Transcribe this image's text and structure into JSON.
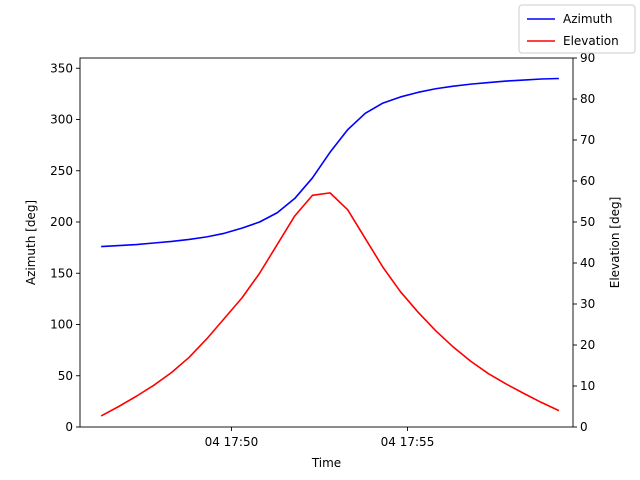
{
  "chart_data": {
    "type": "line",
    "xlabel": "Time",
    "ylabel_left": "Azimuth [deg]",
    "ylabel_right": "Elevation [deg]",
    "x_ticks": [
      {
        "minute": 50,
        "label": "04 17:50"
      },
      {
        "minute": 55,
        "label": "04 17:55"
      }
    ],
    "xlim_minutes": [
      45.7,
      59.7
    ],
    "ylim_left": [
      0,
      360
    ],
    "yticks_left": [
      0,
      50,
      100,
      150,
      200,
      250,
      300,
      350
    ],
    "ylim_right": [
      0,
      90
    ],
    "yticks_right": [
      0,
      10,
      20,
      30,
      40,
      50,
      60,
      70,
      80,
      90
    ],
    "grid": false,
    "legend": {
      "placement": "top-right",
      "entries": [
        "Azimuth",
        "Elevation"
      ]
    },
    "x_minutes": [
      46.3,
      46.8,
      47.3,
      47.8,
      48.3,
      48.8,
      49.3,
      49.8,
      50.3,
      50.8,
      51.3,
      51.8,
      52.3,
      52.8,
      53.3,
      53.8,
      54.3,
      54.8,
      55.3,
      55.8,
      56.3,
      56.8,
      57.3,
      57.8,
      58.3,
      58.8,
      59.3
    ],
    "series": [
      {
        "name": "Azimuth",
        "axis": "left",
        "color": "#0000ff",
        "values": [
          176,
          177,
          178,
          179.5,
          181,
          183,
          185.5,
          189,
          194,
          200,
          209,
          223,
          243,
          268,
          290,
          306,
          316,
          322,
          326.5,
          330,
          332.5,
          334.5,
          336,
          337.5,
          338.5,
          339.5,
          340
        ]
      },
      {
        "name": "Elevation",
        "axis": "right",
        "color": "#ff0000",
        "values": [
          2.7,
          5,
          7.5,
          10.2,
          13.3,
          17,
          21.5,
          26.5,
          31.5,
          37.5,
          44.5,
          51.5,
          56.5,
          57.1,
          53,
          46,
          39,
          33,
          28,
          23.5,
          19.5,
          16,
          13,
          10.5,
          8.2,
          6,
          4
        ]
      }
    ]
  }
}
